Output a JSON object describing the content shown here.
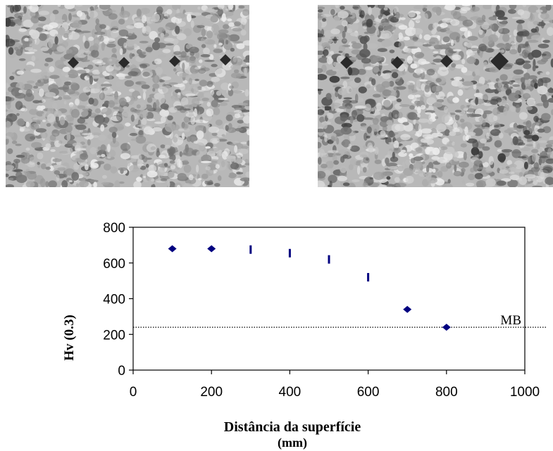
{
  "micrographs": [
    {
      "name": "micrograph-left",
      "indent_marks": 4
    },
    {
      "name": "micrograph-right",
      "indent_marks": 4
    }
  ],
  "chart_data": {
    "type": "scatter",
    "xlabel_line1": "Distância da superfície",
    "xlabel_line2": "(mm)",
    "ylabel": "Hv (0.3)",
    "xlim": [
      0,
      1000
    ],
    "ylim": [
      0,
      800
    ],
    "xticks": [
      0,
      200,
      400,
      600,
      800,
      1000
    ],
    "yticks": [
      0,
      200,
      400,
      600,
      800
    ],
    "grid": false,
    "series": [
      {
        "marker": "diamond",
        "color": "#000080",
        "points": [
          {
            "x": 100,
            "y": 680
          },
          {
            "x": 200,
            "y": 680
          },
          {
            "x": 700,
            "y": 340
          },
          {
            "x": 800,
            "y": 240
          }
        ]
      },
      {
        "marker": "bar",
        "color": "#000080",
        "points": [
          {
            "x": 300,
            "y": 675
          },
          {
            "x": 400,
            "y": 655
          },
          {
            "x": 500,
            "y": 620
          },
          {
            "x": 600,
            "y": 520
          }
        ]
      }
    ],
    "reference_line": {
      "label": "MB",
      "y": 240,
      "style": "dotted"
    }
  }
}
